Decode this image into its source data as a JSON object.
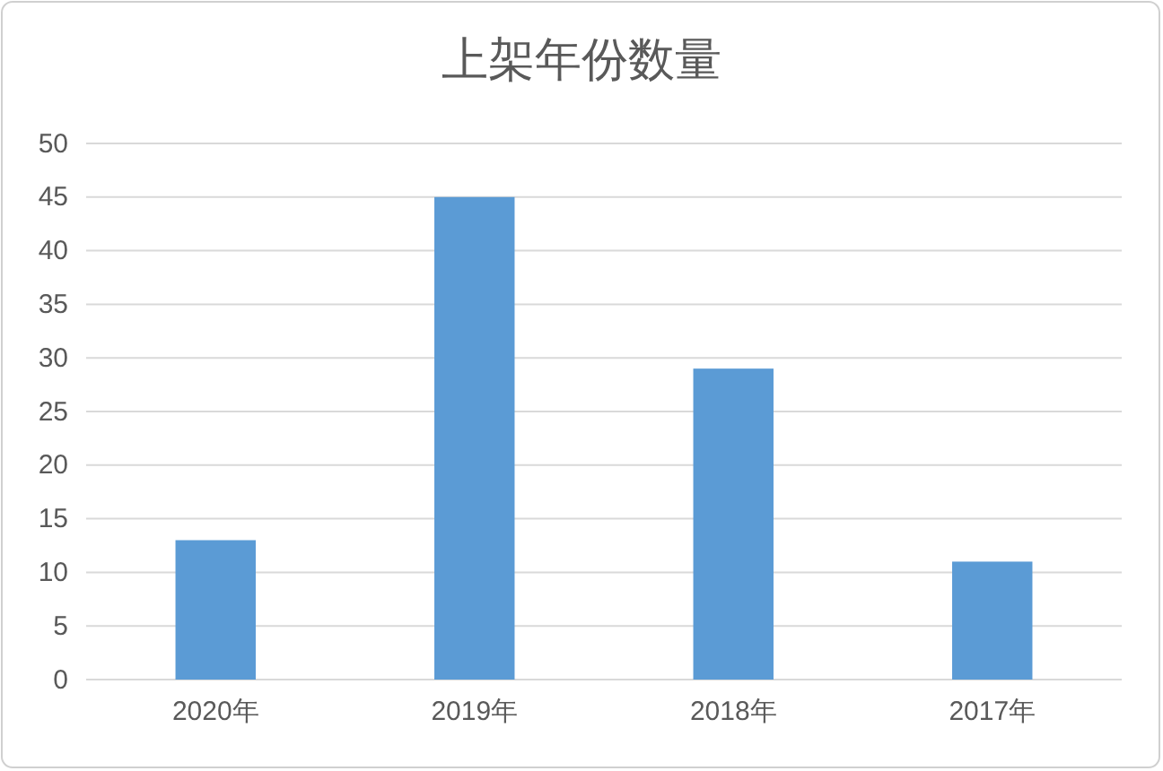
{
  "chart_data": {
    "type": "bar",
    "title": "上架年份数量",
    "categories": [
      "2020年",
      "2019年",
      "2018年",
      "2017年"
    ],
    "values": [
      13,
      45,
      29,
      11
    ],
    "color": "#5b9bd5",
    "ylim": [
      0,
      50
    ],
    "yticks": [
      0,
      5,
      10,
      15,
      20,
      25,
      30,
      35,
      40,
      45,
      50
    ],
    "grid": "y"
  }
}
